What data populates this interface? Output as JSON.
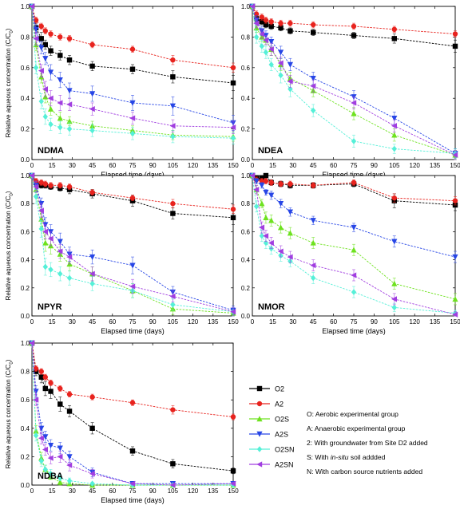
{
  "figure": {
    "ylabel_main": "Relative aqueous concentration (C/C",
    "ylabel_sub": "0",
    "ylabel_end": ")",
    "xlabel": "Elapsed time (days)"
  },
  "series_colors": {
    "O2": "#000000",
    "A2": "#e8231e",
    "O2S": "#6ee21f",
    "A2S": "#2746e6",
    "O2SN": "#55f0d8",
    "A2SN": "#a13ee0"
  },
  "series_markers": {
    "O2": "square",
    "A2": "circle",
    "O2S": "triangle-up",
    "A2S": "triangle-down",
    "O2SN": "diamond",
    "A2SN": "triangle-left"
  },
  "chart_data": [
    {
      "type": "line",
      "label": "NDMA",
      "xlim": [
        0,
        150
      ],
      "ylim": [
        0,
        1.0
      ],
      "xticks": [
        0,
        15,
        30,
        45,
        60,
        75,
        90,
        105,
        120,
        135,
        150
      ],
      "yticks": [
        0.0,
        0.2,
        0.4,
        0.6,
        0.8,
        1.0
      ],
      "x": [
        0,
        3,
        7,
        10,
        14,
        21,
        28,
        45,
        75,
        105,
        150
      ],
      "series": [
        {
          "name": "O2",
          "values": [
            1.0,
            0.86,
            0.79,
            0.75,
            0.71,
            0.68,
            0.65,
            0.61,
            0.59,
            0.54,
            0.5
          ],
          "err": [
            0.02,
            0.03,
            0.04,
            0.03,
            0.03,
            0.03,
            0.03,
            0.03,
            0.03,
            0.04,
            0.05
          ]
        },
        {
          "name": "A2",
          "values": [
            1.0,
            0.91,
            0.87,
            0.84,
            0.82,
            0.8,
            0.79,
            0.75,
            0.72,
            0.65,
            0.6
          ],
          "err": [
            0.01,
            0.02,
            0.02,
            0.02,
            0.02,
            0.02,
            0.02,
            0.02,
            0.02,
            0.03,
            0.03
          ]
        },
        {
          "name": "O2S",
          "values": [
            1.0,
            0.75,
            0.54,
            0.41,
            0.33,
            0.27,
            0.25,
            0.22,
            0.19,
            0.16,
            0.15
          ],
          "err": [
            0.02,
            0.04,
            0.04,
            0.04,
            0.04,
            0.04,
            0.03,
            0.03,
            0.03,
            0.03,
            0.03
          ]
        },
        {
          "name": "A2S",
          "values": [
            1.0,
            0.85,
            0.73,
            0.66,
            0.57,
            0.52,
            0.45,
            0.43,
            0.37,
            0.35,
            0.24
          ],
          "err": [
            0.02,
            0.03,
            0.04,
            0.04,
            0.05,
            0.05,
            0.05,
            0.05,
            0.05,
            0.06,
            0.05
          ]
        },
        {
          "name": "O2SN",
          "values": [
            1.0,
            0.6,
            0.38,
            0.28,
            0.23,
            0.21,
            0.2,
            0.19,
            0.17,
            0.15,
            0.14
          ],
          "err": [
            0.02,
            0.04,
            0.05,
            0.05,
            0.04,
            0.04,
            0.04,
            0.04,
            0.04,
            0.04,
            0.04
          ]
        },
        {
          "name": "A2SN",
          "values": [
            1.0,
            0.79,
            0.58,
            0.46,
            0.4,
            0.37,
            0.36,
            0.33,
            0.27,
            0.22,
            0.21
          ],
          "err": [
            0.02,
            0.04,
            0.04,
            0.05,
            0.05,
            0.05,
            0.04,
            0.04,
            0.04,
            0.04,
            0.04
          ]
        }
      ]
    },
    {
      "type": "line",
      "label": "NDEA",
      "xlim": [
        0,
        150
      ],
      "ylim": [
        0,
        1.0
      ],
      "xticks": [
        0,
        15,
        30,
        45,
        60,
        75,
        90,
        105,
        120,
        135,
        150
      ],
      "yticks": [
        0.0,
        0.2,
        0.4,
        0.6,
        0.8,
        1.0
      ],
      "x": [
        0,
        3,
        7,
        10,
        14,
        21,
        28,
        45,
        75,
        105,
        150
      ],
      "series": [
        {
          "name": "O2",
          "values": [
            1.0,
            0.92,
            0.9,
            0.88,
            0.87,
            0.86,
            0.84,
            0.83,
            0.81,
            0.79,
            0.74
          ],
          "err": [
            0.01,
            0.02,
            0.02,
            0.02,
            0.02,
            0.02,
            0.02,
            0.02,
            0.02,
            0.03,
            0.04
          ]
        },
        {
          "name": "A2",
          "values": [
            1.0,
            0.95,
            0.93,
            0.91,
            0.9,
            0.89,
            0.89,
            0.88,
            0.87,
            0.85,
            0.82
          ],
          "err": [
            0.01,
            0.02,
            0.02,
            0.02,
            0.02,
            0.02,
            0.02,
            0.02,
            0.02,
            0.02,
            0.02
          ]
        },
        {
          "name": "O2S",
          "values": [
            1.0,
            0.86,
            0.8,
            0.78,
            0.72,
            0.62,
            0.53,
            0.45,
            0.3,
            0.16,
            0.03
          ],
          "err": [
            0.02,
            0.03,
            0.03,
            0.03,
            0.04,
            0.04,
            0.04,
            0.04,
            0.04,
            0.04,
            0.03
          ]
        },
        {
          "name": "A2S",
          "values": [
            1.0,
            0.91,
            0.84,
            0.81,
            0.77,
            0.7,
            0.62,
            0.53,
            0.41,
            0.27,
            0.04
          ],
          "err": [
            0.02,
            0.03,
            0.03,
            0.03,
            0.03,
            0.04,
            0.04,
            0.04,
            0.04,
            0.04,
            0.03
          ]
        },
        {
          "name": "O2SN",
          "values": [
            1.0,
            0.8,
            0.74,
            0.7,
            0.62,
            0.55,
            0.46,
            0.32,
            0.12,
            0.07,
            0.04
          ],
          "err": [
            0.02,
            0.04,
            0.04,
            0.04,
            0.04,
            0.05,
            0.05,
            0.04,
            0.04,
            0.03,
            0.03
          ]
        },
        {
          "name": "A2SN",
          "values": [
            1.0,
            0.89,
            0.82,
            0.78,
            0.72,
            0.63,
            0.51,
            0.48,
            0.37,
            0.22,
            0.03
          ],
          "err": [
            0.02,
            0.03,
            0.03,
            0.03,
            0.04,
            0.04,
            0.04,
            0.04,
            0.04,
            0.04,
            0.03
          ]
        }
      ]
    },
    {
      "type": "line",
      "label": "NPYR",
      "xlim": [
        0,
        150
      ],
      "ylim": [
        0,
        1.0
      ],
      "xticks": [
        0,
        15,
        30,
        45,
        60,
        75,
        90,
        105,
        120,
        135,
        150
      ],
      "yticks": [
        0.0,
        0.2,
        0.4,
        0.6,
        0.8,
        1.0
      ],
      "x": [
        0,
        3,
        7,
        10,
        14,
        21,
        28,
        45,
        75,
        105,
        150
      ],
      "series": [
        {
          "name": "O2",
          "values": [
            1.0,
            0.95,
            0.93,
            0.93,
            0.92,
            0.91,
            0.9,
            0.87,
            0.82,
            0.73,
            0.7
          ],
          "err": [
            0.01,
            0.02,
            0.02,
            0.02,
            0.02,
            0.02,
            0.03,
            0.03,
            0.04,
            0.04,
            0.05
          ]
        },
        {
          "name": "A2",
          "values": [
            1.0,
            0.96,
            0.95,
            0.94,
            0.93,
            0.93,
            0.92,
            0.88,
            0.84,
            0.8,
            0.76
          ],
          "err": [
            0.01,
            0.02,
            0.02,
            0.02,
            0.02,
            0.02,
            0.02,
            0.02,
            0.02,
            0.03,
            0.03
          ]
        },
        {
          "name": "O2S",
          "values": [
            1.0,
            0.9,
            0.69,
            0.52,
            0.5,
            0.44,
            0.37,
            0.3,
            0.18,
            0.05,
            0.02
          ],
          "err": [
            0.02,
            0.04,
            0.05,
            0.06,
            0.06,
            0.05,
            0.05,
            0.05,
            0.05,
            0.04,
            0.03
          ]
        },
        {
          "name": "A2S",
          "values": [
            1.0,
            0.93,
            0.8,
            0.65,
            0.6,
            0.53,
            0.44,
            0.42,
            0.36,
            0.17,
            0.04
          ],
          "err": [
            0.02,
            0.03,
            0.04,
            0.05,
            0.05,
            0.06,
            0.05,
            0.05,
            0.06,
            0.04,
            0.03
          ]
        },
        {
          "name": "O2SN",
          "values": [
            1.0,
            0.85,
            0.62,
            0.35,
            0.33,
            0.3,
            0.27,
            0.23,
            0.18,
            0.08,
            0.03
          ],
          "err": [
            0.02,
            0.05,
            0.06,
            0.06,
            0.05,
            0.05,
            0.05,
            0.05,
            0.05,
            0.04,
            0.03
          ]
        },
        {
          "name": "A2SN",
          "values": [
            1.0,
            0.92,
            0.75,
            0.6,
            0.55,
            0.46,
            0.42,
            0.3,
            0.21,
            0.14,
            0.03
          ],
          "err": [
            0.02,
            0.04,
            0.05,
            0.05,
            0.05,
            0.05,
            0.05,
            0.05,
            0.05,
            0.04,
            0.03
          ]
        }
      ]
    },
    {
      "type": "line",
      "label": "NMOR",
      "xlim": [
        0,
        150
      ],
      "ylim": [
        0,
        1.0
      ],
      "xticks": [
        0,
        15,
        30,
        45,
        60,
        75,
        90,
        105,
        120,
        135,
        150
      ],
      "yticks": [
        0.0,
        0.2,
        0.4,
        0.6,
        0.8,
        1.0
      ],
      "x": [
        0,
        3,
        7,
        10,
        14,
        21,
        28,
        45,
        75,
        105,
        150
      ],
      "series": [
        {
          "name": "O2",
          "values": [
            1.0,
            0.98,
            0.98,
            1.0,
            0.95,
            0.94,
            0.93,
            0.93,
            0.94,
            0.82,
            0.79
          ],
          "err": [
            0.01,
            0.02,
            0.02,
            0.02,
            0.02,
            0.02,
            0.02,
            0.02,
            0.02,
            0.05,
            0.04
          ]
        },
        {
          "name": "A2",
          "values": [
            1.0,
            0.97,
            0.96,
            0.96,
            0.95,
            0.94,
            0.94,
            0.93,
            0.95,
            0.84,
            0.82
          ],
          "err": [
            0.01,
            0.02,
            0.02,
            0.02,
            0.02,
            0.02,
            0.02,
            0.02,
            0.02,
            0.03,
            0.03
          ]
        },
        {
          "name": "O2S",
          "values": [
            1.0,
            0.9,
            0.8,
            0.7,
            0.68,
            0.63,
            0.59,
            0.52,
            0.47,
            0.23,
            0.12
          ],
          "err": [
            0.02,
            0.03,
            0.03,
            0.04,
            0.04,
            0.04,
            0.04,
            0.04,
            0.04,
            0.04,
            0.04
          ]
        },
        {
          "name": "A2S",
          "values": [
            1.0,
            0.96,
            0.93,
            0.88,
            0.86,
            0.8,
            0.74,
            0.68,
            0.63,
            0.53,
            0.42
          ],
          "err": [
            0.01,
            0.02,
            0.02,
            0.02,
            0.03,
            0.03,
            0.03,
            0.03,
            0.03,
            0.04,
            0.04
          ]
        },
        {
          "name": "O2SN",
          "values": [
            1.0,
            0.78,
            0.57,
            0.52,
            0.48,
            0.43,
            0.39,
            0.27,
            0.17,
            0.06,
            0.02
          ],
          "err": [
            0.02,
            0.04,
            0.04,
            0.04,
            0.04,
            0.04,
            0.04,
            0.04,
            0.04,
            0.03,
            0.02
          ]
        },
        {
          "name": "A2SN",
          "values": [
            1.0,
            0.9,
            0.63,
            0.57,
            0.52,
            0.46,
            0.42,
            0.36,
            0.29,
            0.12,
            0.01
          ],
          "err": [
            0.02,
            0.03,
            0.04,
            0.04,
            0.04,
            0.04,
            0.04,
            0.04,
            0.04,
            0.04,
            0.02
          ]
        }
      ]
    },
    {
      "type": "line",
      "label": "NDBA",
      "xlim": [
        0,
        150
      ],
      "ylim": [
        0,
        1.0
      ],
      "xticks": [
        0,
        15,
        30,
        45,
        60,
        75,
        90,
        105,
        120,
        135,
        150
      ],
      "yticks": [
        0.0,
        0.2,
        0.4,
        0.6,
        0.8,
        1.0
      ],
      "x": [
        0,
        3,
        7,
        10,
        14,
        21,
        28,
        45,
        75,
        105,
        150
      ],
      "series": [
        {
          "name": "O2",
          "values": [
            1.0,
            0.8,
            0.76,
            0.68,
            0.66,
            0.57,
            0.52,
            0.4,
            0.24,
            0.15,
            0.1
          ],
          "err": [
            0.01,
            0.03,
            0.04,
            0.05,
            0.05,
            0.05,
            0.04,
            0.04,
            0.03,
            0.03,
            0.02
          ]
        },
        {
          "name": "A2",
          "values": [
            1.0,
            0.82,
            0.8,
            0.76,
            0.72,
            0.68,
            0.64,
            0.62,
            0.58,
            0.53,
            0.48
          ],
          "err": [
            0.01,
            0.02,
            0.02,
            0.02,
            0.02,
            0.02,
            0.02,
            0.02,
            0.02,
            0.03,
            0.02
          ]
        },
        {
          "name": "O2S",
          "values": [
            1.0,
            0.38,
            0.19,
            0.11,
            0.06,
            0.02,
            0.01,
            0.0,
            0.0,
            0.0,
            0.0
          ],
          "err": [
            0.02,
            0.04,
            0.04,
            0.03,
            0.02,
            0.02,
            0.01,
            0.01,
            0.01,
            0.01,
            0.01
          ]
        },
        {
          "name": "A2S",
          "values": [
            1.0,
            0.66,
            0.4,
            0.34,
            0.28,
            0.26,
            0.2,
            0.09,
            0.01,
            0.01,
            0.01
          ],
          "err": [
            0.02,
            0.04,
            0.04,
            0.04,
            0.04,
            0.04,
            0.04,
            0.03,
            0.01,
            0.01,
            0.01
          ]
        },
        {
          "name": "O2SN",
          "values": [
            1.0,
            0.35,
            0.17,
            0.11,
            0.08,
            0.05,
            0.03,
            0.01,
            0.0,
            0.0,
            0.0
          ],
          "err": [
            0.02,
            0.04,
            0.04,
            0.03,
            0.03,
            0.02,
            0.02,
            0.01,
            0.01,
            0.01,
            0.01
          ]
        },
        {
          "name": "A2SN",
          "values": [
            1.0,
            0.6,
            0.33,
            0.25,
            0.19,
            0.2,
            0.14,
            0.08,
            0.01,
            0.0,
            0.01
          ],
          "err": [
            0.02,
            0.04,
            0.04,
            0.04,
            0.04,
            0.04,
            0.04,
            0.03,
            0.01,
            0.01,
            0.01
          ]
        }
      ]
    }
  ],
  "legend": {
    "items": [
      "O2",
      "A2",
      "O2S",
      "A2S",
      "O2SN",
      "A2SN"
    ]
  },
  "notes": [
    {
      "text": "O: Aerobic experimental group"
    },
    {
      "text": "A: Anaerobic experimental group"
    },
    {
      "text": "2: With groundwater from Site D2 added"
    },
    {
      "pre": "S: With ",
      "ital": "in-situ",
      "post": " soil addded"
    },
    {
      "text": "N: With carbon source nutrients added"
    }
  ]
}
